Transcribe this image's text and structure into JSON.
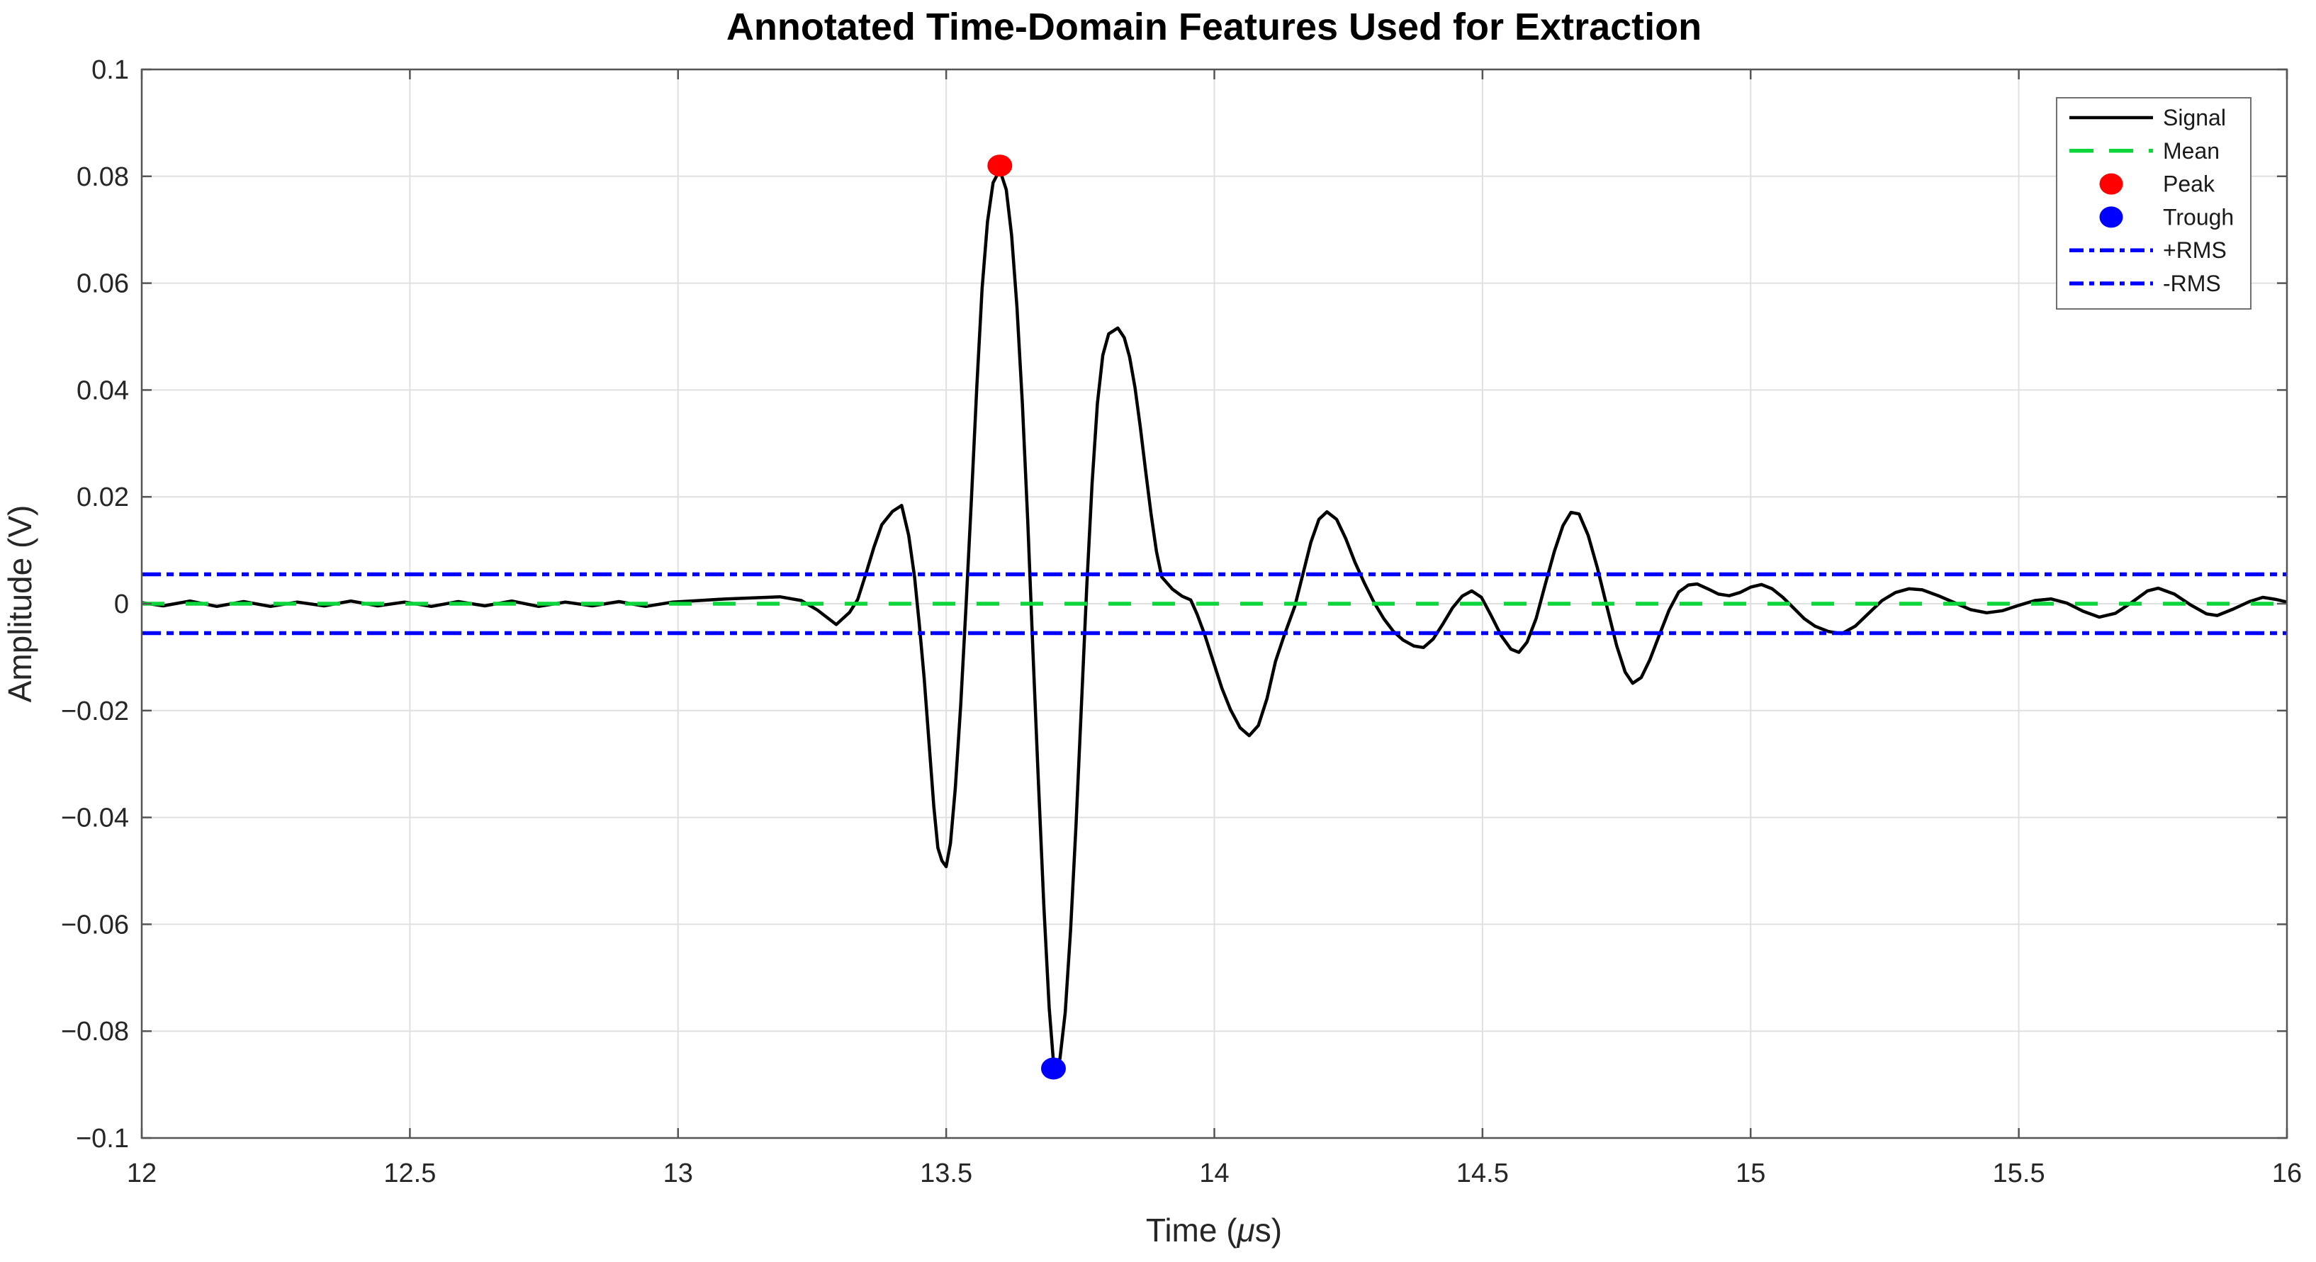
{
  "chart_data": {
    "type": "line",
    "title": "Annotated Time-Domain Features Used for Extraction",
    "xlabel": "Time (μs)",
    "xlabel_parts": [
      "Time (",
      "μ",
      "s)"
    ],
    "ylabel": "Amplitude (V)",
    "xlim": [
      12,
      16
    ],
    "ylim": [
      -0.1,
      0.1
    ],
    "grid": true,
    "xticks": {
      "values": [
        12,
        12.5,
        13,
        13.5,
        14,
        14.5,
        15,
        15.5,
        16
      ],
      "labels": [
        "12",
        "12.5",
        "13",
        "13.5",
        "14",
        "14.5",
        "15",
        "15.5",
        "16"
      ]
    },
    "yticks": {
      "values": [
        0.1,
        0.08,
        0.06,
        0.04,
        0.02,
        0,
        -0.02,
        -0.04,
        -0.06,
        -0.08,
        -0.1
      ],
      "labels": [
        "0.1",
        "0.08",
        "0.06",
        "0.04",
        "0.02",
        "0",
        "−0.02",
        "−0.04",
        "−0.06",
        "−0.08",
        "−0.1"
      ]
    },
    "legend": {
      "position": "northeast",
      "entries": [
        {
          "label": "Signal",
          "swatch": "line",
          "dash": "solid",
          "color": "#000000"
        },
        {
          "label": "Mean",
          "swatch": "line",
          "dash": "dashed",
          "color": "#0ed53c"
        },
        {
          "label": "Peak",
          "swatch": "dot",
          "dash": "none",
          "color": "#ff0000"
        },
        {
          "label": "Trough",
          "swatch": "dot",
          "dash": "none",
          "color": "#0000ff"
        },
        {
          "label": "+RMS",
          "swatch": "line",
          "dash": "dashdot",
          "color": "#0000ff"
        },
        {
          "label": "-RMS",
          "swatch": "line",
          "dash": "dashdot",
          "color": "#0000ff"
        }
      ]
    },
    "annotations": {
      "mean": {
        "value": 0.0,
        "color": "#0ed53c",
        "style": "dashed"
      },
      "rms_plus": {
        "value": 0.0055,
        "color": "#0000ff",
        "style": "dashdot"
      },
      "rms_minus": {
        "value": -0.0055,
        "color": "#0000ff",
        "style": "dashdot"
      },
      "peak": {
        "t": 13.6,
        "value": 0.082,
        "color": "#ff0000"
      },
      "trough": {
        "t": 13.7,
        "value": -0.087,
        "color": "#0000ff"
      }
    },
    "series": [
      {
        "name": "Signal",
        "color": "#000000",
        "points": [
          [
            12.0,
            0.0002
          ],
          [
            12.04,
            -0.0004
          ],
          [
            12.09,
            0.0005
          ],
          [
            12.14,
            -0.0005
          ],
          [
            12.19,
            0.0004
          ],
          [
            12.24,
            -0.0005
          ],
          [
            12.29,
            0.0003
          ],
          [
            12.34,
            -0.0004
          ],
          [
            12.39,
            0.0005
          ],
          [
            12.44,
            -0.0004
          ],
          [
            12.49,
            0.0003
          ],
          [
            12.54,
            -0.0005
          ],
          [
            12.59,
            0.0004
          ],
          [
            12.64,
            -0.0004
          ],
          [
            12.69,
            0.0005
          ],
          [
            12.74,
            -0.0005
          ],
          [
            12.79,
            0.0003
          ],
          [
            12.84,
            -0.0004
          ],
          [
            12.89,
            0.0004
          ],
          [
            12.94,
            -0.0005
          ],
          [
            12.99,
            0.0003
          ],
          [
            13.04,
            0.0006
          ],
          [
            13.09,
            0.0009
          ],
          [
            13.14,
            0.0011
          ],
          [
            13.19,
            0.0013
          ],
          [
            13.23,
            0.0006
          ],
          [
            13.26,
            -0.0012
          ],
          [
            13.295,
            -0.0039
          ],
          [
            13.32,
            -0.0016
          ],
          [
            13.335,
            0.0008
          ],
          [
            13.35,
            0.0055
          ],
          [
            13.365,
            0.0105
          ],
          [
            13.38,
            0.0148
          ],
          [
            13.4,
            0.0173
          ],
          [
            13.417,
            0.0184
          ],
          [
            13.43,
            0.0128
          ],
          [
            13.441,
            0.005
          ],
          [
            13.45,
            -0.004
          ],
          [
            13.459,
            -0.014
          ],
          [
            13.468,
            -0.026
          ],
          [
            13.477,
            -0.038
          ],
          [
            13.4845,
            -0.0457
          ],
          [
            13.492,
            -0.0481
          ],
          [
            13.5,
            -0.0492
          ],
          [
            13.508,
            -0.0448
          ],
          [
            13.517,
            -0.0345
          ],
          [
            13.527,
            -0.019
          ],
          [
            13.537,
            -0.0005
          ],
          [
            13.547,
            0.0195
          ],
          [
            13.557,
            0.0405
          ],
          [
            13.567,
            0.059
          ],
          [
            13.577,
            0.0715
          ],
          [
            13.5875,
            0.0788
          ],
          [
            13.6,
            0.0812
          ],
          [
            13.612,
            0.0775
          ],
          [
            13.622,
            0.069
          ],
          [
            13.632,
            0.0555
          ],
          [
            13.642,
            0.0375
          ],
          [
            13.652,
            0.0155
          ],
          [
            13.662,
            -0.0095
          ],
          [
            13.672,
            -0.0335
          ],
          [
            13.682,
            -0.0565
          ],
          [
            13.692,
            -0.0755
          ],
          [
            13.7,
            -0.0858
          ],
          [
            13.712,
            -0.0852
          ],
          [
            13.722,
            -0.0765
          ],
          [
            13.732,
            -0.061
          ],
          [
            13.742,
            -0.0415
          ],
          [
            13.752,
            -0.0195
          ],
          [
            13.762,
            0.003
          ],
          [
            13.772,
            0.0225
          ],
          [
            13.782,
            0.0375
          ],
          [
            13.792,
            0.0465
          ],
          [
            13.803,
            0.0505
          ],
          [
            13.82,
            0.0516
          ],
          [
            13.832,
            0.0498
          ],
          [
            13.842,
            0.0462
          ],
          [
            13.852,
            0.0405
          ],
          [
            13.862,
            0.033
          ],
          [
            13.872,
            0.0248
          ],
          [
            13.882,
            0.0168
          ],
          [
            13.892,
            0.0098
          ],
          [
            13.902,
            0.005
          ],
          [
            13.922,
            0.0027
          ],
          [
            13.94,
            0.0014
          ],
          [
            13.956,
            0.0007
          ],
          [
            13.968,
            -0.002
          ],
          [
            13.982,
            -0.0058
          ],
          [
            13.998,
            -0.0108
          ],
          [
            14.014,
            -0.0158
          ],
          [
            14.03,
            -0.0198
          ],
          [
            14.048,
            -0.0232
          ],
          [
            14.065,
            -0.0247
          ],
          [
            14.082,
            -0.0228
          ],
          [
            14.098,
            -0.0178
          ],
          [
            14.114,
            -0.0108
          ],
          [
            14.13,
            -0.006
          ],
          [
            14.15,
            -0.0005
          ],
          [
            14.165,
            0.0055
          ],
          [
            14.18,
            0.0115
          ],
          [
            14.195,
            0.0158
          ],
          [
            14.21,
            0.0172
          ],
          [
            14.228,
            0.0158
          ],
          [
            14.245,
            0.0122
          ],
          [
            14.262,
            0.0078
          ],
          [
            14.28,
            0.0038
          ],
          [
            14.298,
            0.0002
          ],
          [
            14.316,
            -0.0028
          ],
          [
            14.334,
            -0.0052
          ],
          [
            14.352,
            -0.0068
          ],
          [
            14.372,
            -0.0079
          ],
          [
            14.39,
            -0.0082
          ],
          [
            14.408,
            -0.0066
          ],
          [
            14.426,
            -0.0038
          ],
          [
            14.444,
            -0.0008
          ],
          [
            14.462,
            0.0014
          ],
          [
            14.48,
            0.0024
          ],
          [
            14.498,
            0.0012
          ],
          [
            14.516,
            -0.0022
          ],
          [
            14.535,
            -0.006
          ],
          [
            14.553,
            -0.0085
          ],
          [
            14.568,
            -0.0091
          ],
          [
            14.583,
            -0.0072
          ],
          [
            14.6,
            -0.0028
          ],
          [
            14.617,
            0.0036
          ],
          [
            14.634,
            0.0098
          ],
          [
            14.65,
            0.0146
          ],
          [
            14.665,
            0.0171
          ],
          [
            14.68,
            0.0168
          ],
          [
            14.697,
            0.0128
          ],
          [
            14.714,
            0.0068
          ],
          [
            14.732,
            -0.0005
          ],
          [
            14.75,
            -0.0078
          ],
          [
            14.766,
            -0.0128
          ],
          [
            14.78,
            -0.0149
          ],
          [
            14.796,
            -0.0138
          ],
          [
            14.812,
            -0.0105
          ],
          [
            14.83,
            -0.0058
          ],
          [
            14.848,
            -0.0012
          ],
          [
            14.866,
            0.0022
          ],
          [
            14.884,
            0.0035
          ],
          [
            14.9,
            0.0037
          ],
          [
            14.92,
            0.0028
          ],
          [
            14.94,
            0.0018
          ],
          [
            14.96,
            0.0015
          ],
          [
            14.98,
            0.0021
          ],
          [
            15.0,
            0.0031
          ],
          [
            15.02,
            0.0036
          ],
          [
            15.04,
            0.0028
          ],
          [
            15.06,
            0.0012
          ],
          [
            15.08,
            -0.0008
          ],
          [
            15.1,
            -0.0028
          ],
          [
            15.12,
            -0.0042
          ],
          [
            15.145,
            -0.0052
          ],
          [
            15.17,
            -0.0056
          ],
          [
            15.195,
            -0.0042
          ],
          [
            15.22,
            -0.0018
          ],
          [
            15.245,
            0.0006
          ],
          [
            15.27,
            0.0021
          ],
          [
            15.295,
            0.0028
          ],
          [
            15.32,
            0.0026
          ],
          [
            15.35,
            0.0015
          ],
          [
            15.38,
            0.0002
          ],
          [
            15.41,
            -0.0011
          ],
          [
            15.44,
            -0.0017
          ],
          [
            15.47,
            -0.0013
          ],
          [
            15.5,
            -0.0003
          ],
          [
            15.53,
            0.0006
          ],
          [
            15.56,
            0.0009
          ],
          [
            15.59,
            0.0001
          ],
          [
            15.62,
            -0.0014
          ],
          [
            15.65,
            -0.0025
          ],
          [
            15.68,
            -0.0018
          ],
          [
            15.71,
            0.0002
          ],
          [
            15.74,
            0.0024
          ],
          [
            15.76,
            0.0029
          ],
          [
            15.79,
            0.0018
          ],
          [
            15.82,
            -0.0002
          ],
          [
            15.85,
            -0.0019
          ],
          [
            15.87,
            -0.0022
          ],
          [
            15.9,
            -0.001
          ],
          [
            15.93,
            0.0004
          ],
          [
            15.955,
            0.0012
          ],
          [
            15.98,
            0.0008
          ],
          [
            16.0,
            0.0003
          ]
        ]
      }
    ],
    "style_colors": {
      "grid": "#e0e0e0",
      "frame": "#555555",
      "tick_text": "#262626",
      "legend_border": "#707070",
      "background": "#ffffff"
    }
  }
}
